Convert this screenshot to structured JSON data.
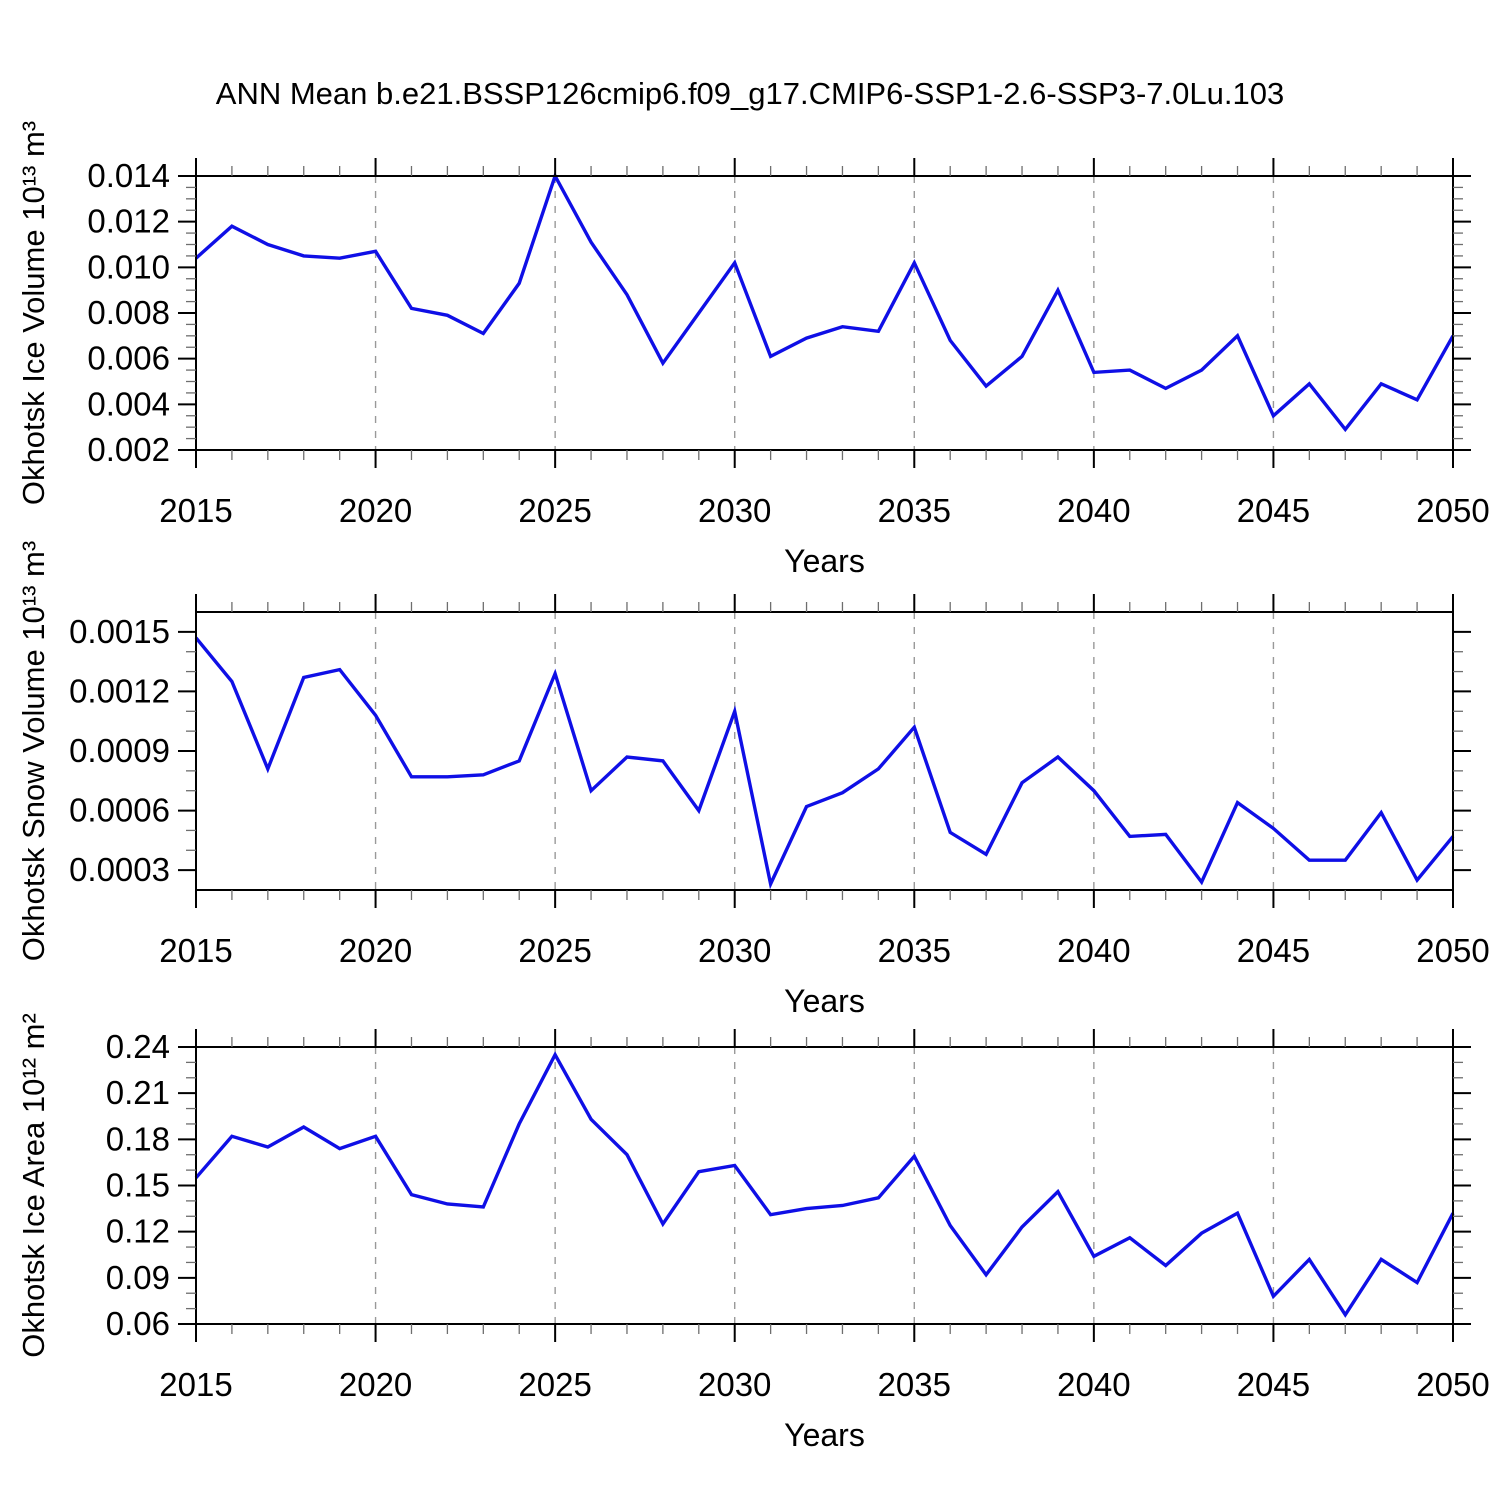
{
  "title": "ANN Mean b.e21.BSSP126cmip6.f09_g17.CMIP6-SSP1-2.6-SSP3-7.0Lu.103",
  "colors": {
    "line": "#0f0fe6",
    "axis": "#000000",
    "grid": "#999999",
    "text": "#000000"
  },
  "chart_data": [
    {
      "id": "okhotsk-ice-volume",
      "type": "line",
      "ylabel": "Okhotsk Ice Volume 10¹³ m³",
      "xlabel": "Years",
      "ylim": [
        0.002,
        0.014
      ],
      "ytick_values": [
        0.002,
        0.004,
        0.006,
        0.008,
        0.01,
        0.012,
        0.014
      ],
      "ytick_labels": [
        "0.002",
        "0.004",
        "0.006",
        "0.008",
        "0.010",
        "0.012",
        "0.014"
      ],
      "yminor_step": 0.0005,
      "xlim": [
        2015,
        2050
      ],
      "xtick_values": [
        2015,
        2020,
        2025,
        2030,
        2035,
        2040,
        2045,
        2050
      ],
      "xtick_labels": [
        "2015",
        "2020",
        "2025",
        "2030",
        "2035",
        "2040",
        "2045",
        "2050"
      ],
      "xminor_step": 1,
      "grid_x": [
        2020,
        2025,
        2030,
        2035,
        2040,
        2045
      ],
      "x": [
        2015,
        2016,
        2017,
        2018,
        2019,
        2020,
        2021,
        2022,
        2023,
        2024,
        2025,
        2026,
        2027,
        2028,
        2029,
        2030,
        2031,
        2032,
        2033,
        2034,
        2035,
        2036,
        2037,
        2038,
        2039,
        2040,
        2041,
        2042,
        2043,
        2044,
        2045,
        2046,
        2047,
        2048,
        2049,
        2050
      ],
      "values": [
        0.0104,
        0.0118,
        0.011,
        0.0105,
        0.0104,
        0.0107,
        0.0082,
        0.0079,
        0.0071,
        0.0093,
        0.014,
        0.0111,
        0.0088,
        0.0058,
        0.008,
        0.0102,
        0.0061,
        0.0069,
        0.0074,
        0.0072,
        0.0102,
        0.0068,
        0.0048,
        0.0061,
        0.009,
        0.0054,
        0.0055,
        0.0047,
        0.0055,
        0.007,
        0.0035,
        0.0049,
        0.0029,
        0.0049,
        0.0042,
        0.007
      ]
    },
    {
      "id": "okhotsk-snow-volume",
      "type": "line",
      "ylabel": "Okhotsk Snow Volume 10¹³ m³",
      "xlabel": "Years",
      "ylim": [
        0.0002,
        0.0016
      ],
      "ytick_values": [
        0.0003,
        0.0006,
        0.0009,
        0.0012,
        0.0015
      ],
      "ytick_labels": [
        "0.0003",
        "0.0006",
        "0.0009",
        "0.0012",
        "0.0015"
      ],
      "yminor_step": 0.0001,
      "xlim": [
        2015,
        2050
      ],
      "xtick_values": [
        2015,
        2020,
        2025,
        2030,
        2035,
        2040,
        2045,
        2050
      ],
      "xtick_labels": [
        "2015",
        "2020",
        "2025",
        "2030",
        "2035",
        "2040",
        "2045",
        "2050"
      ],
      "xminor_step": 1,
      "grid_x": [
        2020,
        2025,
        2030,
        2035,
        2040,
        2045
      ],
      "x": [
        2015,
        2016,
        2017,
        2018,
        2019,
        2020,
        2021,
        2022,
        2023,
        2024,
        2025,
        2026,
        2027,
        2028,
        2029,
        2030,
        2031,
        2032,
        2033,
        2034,
        2035,
        2036,
        2037,
        2038,
        2039,
        2040,
        2041,
        2042,
        2043,
        2044,
        2045,
        2046,
        2047,
        2048,
        2049,
        2050
      ],
      "values": [
        0.00147,
        0.00125,
        0.00081,
        0.00127,
        0.00131,
        0.00108,
        0.00077,
        0.00077,
        0.00078,
        0.00085,
        0.00129,
        0.0007,
        0.00087,
        0.00085,
        0.0006,
        0.0011,
        0.00023,
        0.00062,
        0.00069,
        0.00081,
        0.00102,
        0.00049,
        0.00038,
        0.00074,
        0.00087,
        0.0007,
        0.00047,
        0.00048,
        0.00024,
        0.00064,
        0.00051,
        0.00035,
        0.00035,
        0.00059,
        0.00025,
        0.00047
      ]
    },
    {
      "id": "okhotsk-ice-area",
      "type": "line",
      "ylabel": "Okhotsk Ice Area 10¹² m²",
      "xlabel": "Years",
      "ylim": [
        0.06,
        0.24
      ],
      "ytick_values": [
        0.06,
        0.09,
        0.12,
        0.15,
        0.18,
        0.21,
        0.24
      ],
      "ytick_labels": [
        "0.06",
        "0.09",
        "0.12",
        "0.15",
        "0.18",
        "0.21",
        "0.24"
      ],
      "yminor_step": 0.01,
      "xlim": [
        2015,
        2050
      ],
      "xtick_values": [
        2015,
        2020,
        2025,
        2030,
        2035,
        2040,
        2045,
        2050
      ],
      "xtick_labels": [
        "2015",
        "2020",
        "2025",
        "2030",
        "2035",
        "2040",
        "2045",
        "2050"
      ],
      "xminor_step": 1,
      "grid_x": [
        2020,
        2025,
        2030,
        2035,
        2040,
        2045
      ],
      "x": [
        2015,
        2016,
        2017,
        2018,
        2019,
        2020,
        2021,
        2022,
        2023,
        2024,
        2025,
        2026,
        2027,
        2028,
        2029,
        2030,
        2031,
        2032,
        2033,
        2034,
        2035,
        2036,
        2037,
        2038,
        2039,
        2040,
        2041,
        2042,
        2043,
        2044,
        2045,
        2046,
        2047,
        2048,
        2049,
        2050
      ],
      "values": [
        0.155,
        0.182,
        0.175,
        0.188,
        0.174,
        0.182,
        0.144,
        0.138,
        0.136,
        0.19,
        0.235,
        0.193,
        0.17,
        0.125,
        0.159,
        0.163,
        0.131,
        0.135,
        0.137,
        0.142,
        0.169,
        0.124,
        0.092,
        0.123,
        0.146,
        0.104,
        0.116,
        0.098,
        0.119,
        0.132,
        0.078,
        0.102,
        0.066,
        0.102,
        0.087,
        0.132
      ]
    }
  ]
}
